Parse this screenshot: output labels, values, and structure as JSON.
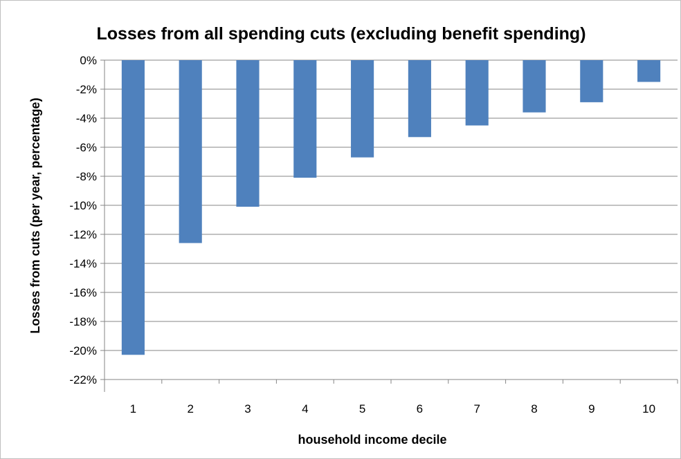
{
  "chart_data": {
    "type": "bar",
    "title": "Losses from all spending cuts (excluding benefit spending)",
    "xlabel": "household income decile",
    "ylabel": "Losses from cuts (per year, percentage)",
    "categories": [
      "1",
      "2",
      "3",
      "4",
      "5",
      "6",
      "7",
      "8",
      "9",
      "10"
    ],
    "values": [
      -20.3,
      -12.6,
      -10.1,
      -8.1,
      -6.7,
      -5.3,
      -4.5,
      -3.6,
      -2.9,
      -1.5
    ],
    "ylim": [
      -22,
      0
    ],
    "yticks": [
      "0%",
      "-2%",
      "-4%",
      "-6%",
      "-8%",
      "-10%",
      "-12%",
      "-14%",
      "-16%",
      "-18%",
      "-20%",
      "-22%"
    ],
    "grid": true,
    "legend": "none",
    "bar_color": "#4f81bd"
  }
}
